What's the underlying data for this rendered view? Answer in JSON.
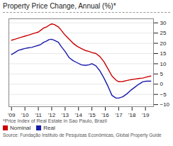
{
  "chart_data": {
    "type": "line",
    "title": "Property Price Change, Annual (%)*",
    "annotations": [
      "*Price Index of Real Estate in Sao Paulo, Brazil",
      "Source: Fundação Instituto de Pesquisas Econômicas, Global Property Guide"
    ],
    "x": [
      2009.0,
      2009.25,
      2009.5,
      2009.75,
      2010.0,
      2010.25,
      2010.5,
      2010.75,
      2011.0,
      2011.2,
      2011.4,
      2011.6,
      2011.8,
      2012.0,
      2012.2,
      2012.5,
      2012.7,
      2013.0,
      2013.3,
      2013.6,
      2013.9,
      2014.2,
      2014.5,
      2014.8,
      2015.0,
      2015.3,
      2015.6,
      2015.9,
      2016.2,
      2016.5,
      2016.8,
      2017.0,
      2017.3,
      2017.6,
      2017.9,
      2018.2,
      2018.5,
      2018.8,
      2019.1,
      2019.4
    ],
    "series": [
      {
        "name": "Nominal",
        "color": "#cc0000",
        "values": [
          21.5,
          22.0,
          22.5,
          23.0,
          23.5,
          24.0,
          24.5,
          25.0,
          25.5,
          26.5,
          27.5,
          28.0,
          28.8,
          29.5,
          29.2,
          28.0,
          26.5,
          24.0,
          22.0,
          20.0,
          18.5,
          17.5,
          16.5,
          16.0,
          15.5,
          15.0,
          13.5,
          11.0,
          7.5,
          4.0,
          2.0,
          1.2,
          1.3,
          1.8,
          2.2,
          2.5,
          2.8,
          3.0,
          3.5,
          4.0
        ]
      },
      {
        "name": "Real",
        "color": "#1a1aaa",
        "values": [
          14.5,
          15.5,
          16.5,
          17.0,
          17.5,
          17.8,
          18.0,
          18.5,
          19.0,
          19.5,
          20.5,
          21.0,
          21.8,
          22.0,
          21.5,
          20.5,
          18.5,
          16.0,
          13.0,
          11.5,
          10.5,
          9.5,
          9.2,
          9.5,
          10.0,
          9.0,
          6.5,
          3.0,
          -1.0,
          -5.5,
          -6.8,
          -6.8,
          -6.2,
          -4.8,
          -3.0,
          -1.5,
          0.0,
          1.2,
          1.5,
          1.5
        ]
      }
    ],
    "xlim": [
      2008.8,
      2019.6
    ],
    "xticks": [
      {
        "value": 2009,
        "label": "'09"
      },
      {
        "value": 2010,
        "label": "'10"
      },
      {
        "value": 2011,
        "label": "'11"
      },
      {
        "value": 2012,
        "label": "'12"
      },
      {
        "value": 2013,
        "label": "'13"
      },
      {
        "value": 2014,
        "label": "'14"
      },
      {
        "value": 2015,
        "label": "'15"
      },
      {
        "value": 2016,
        "label": "'16"
      },
      {
        "value": 2017,
        "label": "'17"
      },
      {
        "value": 2018,
        "label": "'18"
      },
      {
        "value": 2019,
        "label": "'19"
      }
    ],
    "ylim": [
      -11,
      32
    ],
    "yticks": [
      -10,
      -5,
      0,
      5,
      10,
      15,
      20,
      25,
      30
    ],
    "grid": true,
    "legend": "bottom"
  }
}
